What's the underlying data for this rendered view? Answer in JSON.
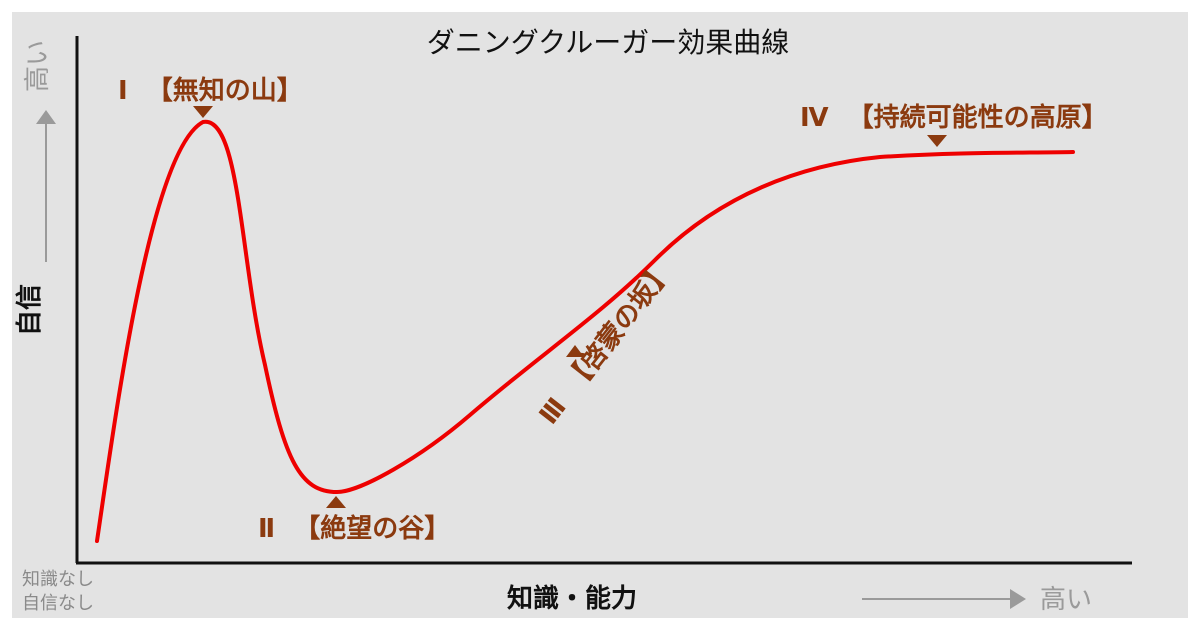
{
  "title": "ダニングクルーガー効果曲線",
  "axes": {
    "x_label": "知識・能力",
    "y_label": "自信",
    "x_high": "高い",
    "y_high": "高い",
    "origin_line1": "知識なし",
    "origin_line2": "自信なし"
  },
  "stages": [
    {
      "numeral": "Ⅰ",
      "name": "【無知の山】"
    },
    {
      "numeral": "Ⅱ",
      "name": "【絶望の谷】"
    },
    {
      "numeral": "Ⅲ",
      "name": "【啓蒙の坂】"
    },
    {
      "numeral": "Ⅳ",
      "name": "【持続可能性の高原】"
    }
  ],
  "colors": {
    "curve": "#ee0000",
    "stage_text": "#8b3a0f",
    "background": "#e3e3e3",
    "axis_hint": "#9a9a9a"
  }
}
